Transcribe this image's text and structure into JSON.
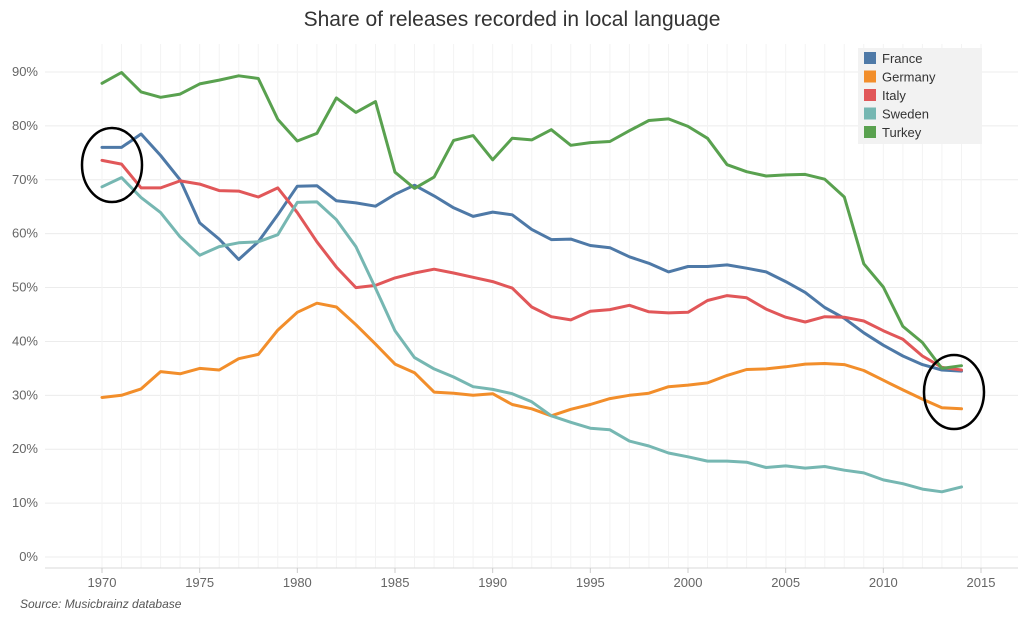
{
  "chart_data": {
    "type": "line",
    "title": "Share of releases recorded in local language",
    "source": "Source: Musicbrainz database",
    "xlabel": "",
    "ylabel": "",
    "xlim": [
      1966,
      2018
    ],
    "ylim": [
      0,
      92
    ],
    "x_ticks": [
      "1970",
      "1975",
      "1980",
      "1985",
      "1990",
      "1995",
      "2000",
      "2005",
      "2010",
      "2015"
    ],
    "y_ticks": [
      "0%",
      "10%",
      "20%",
      "30%",
      "40%",
      "50%",
      "60%",
      "70%",
      "80%",
      "90%"
    ],
    "grid": true,
    "legend_position": "top-right",
    "x": [
      1970,
      1971,
      1972,
      1973,
      1974,
      1975,
      1976,
      1977,
      1978,
      1979,
      1980,
      1981,
      1982,
      1983,
      1984,
      1985,
      1986,
      1987,
      1988,
      1989,
      1990,
      1991,
      1992,
      1993,
      1994,
      1995,
      1996,
      1997,
      1998,
      1999,
      2000,
      2001,
      2002,
      2003,
      2004,
      2005,
      2006,
      2007,
      2008,
      2009,
      2010,
      2011,
      2012,
      2013,
      2014
    ],
    "series": [
      {
        "name": "France",
        "color": "#4e79a7",
        "values": [
          76,
          76,
          78.5,
          74.5,
          70,
          62,
          59,
          55.2,
          58.5,
          63.5,
          68.8,
          68.9,
          66.1,
          65.7,
          65.1,
          67.3,
          69,
          67,
          64.8,
          63.2,
          64,
          63.5,
          60.8,
          58.9,
          59,
          57.8,
          57.4,
          55.7,
          54.5,
          52.9,
          53.9,
          53.9,
          54.2,
          53.6,
          52.9,
          51.1,
          49.1,
          46.3,
          44.3,
          41.6,
          39.3,
          37.3,
          35.7,
          34.7,
          34.5
        ]
      },
      {
        "name": "Germany",
        "color": "#f28e2b",
        "values": [
          29.6,
          30,
          31.2,
          34.4,
          34,
          35,
          34.7,
          36.8,
          37.6,
          42.1,
          45.4,
          47.1,
          46.4,
          43.1,
          39.5,
          35.8,
          34.2,
          30.6,
          30.4,
          30,
          30.3,
          28.3,
          27.5,
          26.2,
          27.4,
          28.3,
          29.4,
          30,
          30.4,
          31.6,
          31.9,
          32.3,
          33.7,
          34.8,
          34.9,
          35.3,
          35.8,
          35.9,
          35.7,
          34.6,
          32.8,
          31,
          29.3,
          27.7,
          27.5
        ]
      },
      {
        "name": "Italy",
        "color": "#e15759",
        "values": [
          73.6,
          72.9,
          68.5,
          68.5,
          69.8,
          69.2,
          68,
          67.9,
          66.8,
          68.5,
          63.9,
          58.5,
          53.8,
          50,
          50.4,
          51.8,
          52.7,
          53.4,
          52.7,
          51.9,
          51.1,
          49.9,
          46.4,
          44.6,
          44,
          45.6,
          45.9,
          46.7,
          45.5,
          45.3,
          45.4,
          47.6,
          48.5,
          48.1,
          46,
          44.5,
          43.6,
          44.6,
          44.5,
          43.8,
          42,
          40.4,
          37.3,
          35.2,
          34.7
        ]
      },
      {
        "name": "Sweden",
        "color": "#76b7b2",
        "values": [
          68.7,
          70.4,
          66.7,
          63.9,
          59.4,
          56,
          57.6,
          58.3,
          58.5,
          59.8,
          65.8,
          65.9,
          62.6,
          57.6,
          49.9,
          42,
          37,
          34.9,
          33.4,
          31.6,
          31.1,
          30.3,
          28.8,
          26.2,
          25,
          23.9,
          23.6,
          21.5,
          20.6,
          19.3,
          18.6,
          17.8,
          17.8,
          17.6,
          16.6,
          16.9,
          16.5,
          16.8,
          16.1,
          15.6,
          14.3,
          13.6,
          12.6,
          12.1,
          13
        ]
      },
      {
        "name": "Turkey",
        "color": "#59a14f",
        "values": [
          87.9,
          89.9,
          86.3,
          85.3,
          85.9,
          87.8,
          88.5,
          89.3,
          88.8,
          81.2,
          77.2,
          78.6,
          85.2,
          82.5,
          84.5,
          71.4,
          68.4,
          70.5,
          77.3,
          78.2,
          73.7,
          77.7,
          77.4,
          79.3,
          76.4,
          76.9,
          77.1,
          79.1,
          81,
          81.3,
          79.9,
          77.7,
          72.8,
          71.5,
          70.7,
          70.9,
          71,
          70.1,
          66.8,
          54.4,
          50.1,
          42.8,
          39.8,
          35,
          35.5
        ]
      }
    ],
    "annotations": [
      {
        "type": "circle",
        "near": "1970-1971, 69-77%"
      },
      {
        "type": "circle",
        "near": "2013-2014, 28-38%"
      }
    ]
  }
}
